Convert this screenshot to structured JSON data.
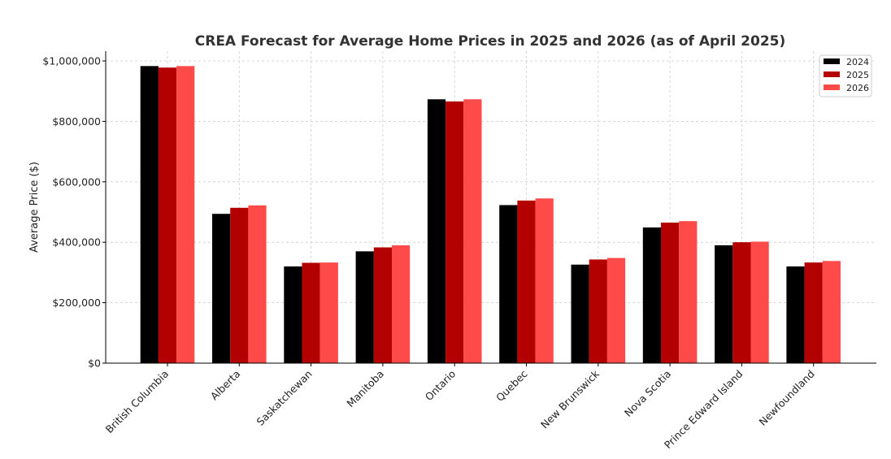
{
  "chart_data": {
    "type": "bar",
    "title": "CREA Forecast for Average Home Prices in 2025 and 2026 (as of April 2025)",
    "xlabel": "",
    "ylabel": "Average Price ($)",
    "ylim": [
      0,
      1030000
    ],
    "yticks": [
      0,
      200000,
      400000,
      600000,
      800000,
      1000000
    ],
    "ytick_labels": [
      "$0",
      "$200,000",
      "$400,000",
      "$600,000",
      "$800,000",
      "$1,000,000"
    ],
    "categories": [
      "British Columbia",
      "Alberta",
      "Saskatchewan",
      "Manitoba",
      "Ontario",
      "Quebec",
      "New Brunswick",
      "Nova Scotia",
      "Prince Edward Island",
      "Newfoundland"
    ],
    "series": [
      {
        "name": "2024",
        "color": "#000000",
        "values": [
          983000,
          494000,
          320000,
          370000,
          873000,
          523000,
          326000,
          449000,
          390000,
          320000
        ]
      },
      {
        "name": "2025",
        "color": "#b30000",
        "values": [
          978000,
          514000,
          332000,
          383000,
          866000,
          538000,
          343000,
          465000,
          400000,
          333000
        ]
      },
      {
        "name": "2026",
        "color": "#ff4a4a",
        "values": [
          983000,
          522000,
          333000,
          390000,
          873000,
          545000,
          348000,
          470000,
          402000,
          338000
        ]
      }
    ],
    "grid": true,
    "legend": "top-right"
  }
}
